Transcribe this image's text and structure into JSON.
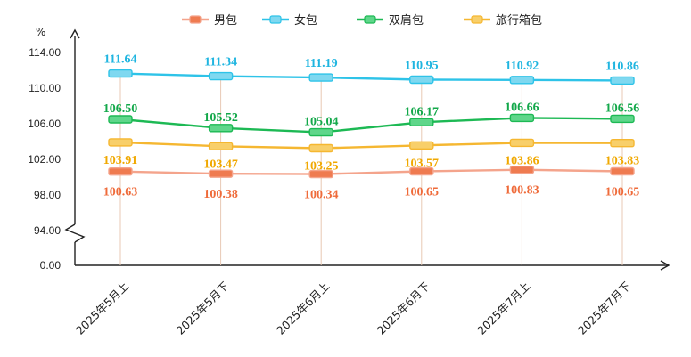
{
  "chart_data": {
    "type": "line",
    "title": "",
    "xlabel": "",
    "ylabel": "%",
    "categories": [
      "2025年5月上",
      "2025年5月下",
      "2025年6月上",
      "2025年6月下",
      "2025年7月上",
      "2025年7月下"
    ],
    "y_ticks": [
      "0.00",
      "94.00",
      "98.00",
      "102.00",
      "106.00",
      "110.00",
      "114.00"
    ],
    "ylim": [
      94,
      116
    ],
    "axis_break": true,
    "legend_position": "top",
    "grid": false,
    "series": [
      {
        "name": "男包",
        "color": "#f4a48c",
        "marker_color": "#ef7b50",
        "label_color": "#ef6b3a",
        "values": [
          100.63,
          100.38,
          100.34,
          100.65,
          100.83,
          100.65
        ],
        "labels": [
          "100.63",
          "100.38",
          "100.34",
          "100.65",
          "100.83",
          "100.65"
        ]
      },
      {
        "name": "女包",
        "color": "#2ec3e8",
        "marker_color": "#7fd8f0",
        "label_color": "#1fb5e0",
        "values": [
          111.64,
          111.34,
          111.19,
          110.95,
          110.92,
          110.86
        ],
        "labels": [
          "111.64",
          "111.34",
          "111.19",
          "110.95",
          "110.92",
          "110.86"
        ]
      },
      {
        "name": "双肩包",
        "color": "#1db954",
        "marker_color": "#5fd68a",
        "label_color": "#13a84a",
        "values": [
          106.5,
          105.52,
          105.04,
          106.17,
          106.66,
          106.56
        ],
        "labels": [
          "106.50",
          "105.52",
          "105.04",
          "106.17",
          "106.66",
          "106.56"
        ]
      },
      {
        "name": "旅行箱包",
        "color": "#f5b731",
        "marker_color": "#f8cf6a",
        "label_color": "#f0a800",
        "values": [
          103.91,
          103.47,
          103.25,
          103.57,
          103.86,
          103.83
        ],
        "labels": [
          "103.91",
          "103.47",
          "103.25",
          "103.57",
          "103.86",
          "103.83"
        ]
      }
    ]
  }
}
